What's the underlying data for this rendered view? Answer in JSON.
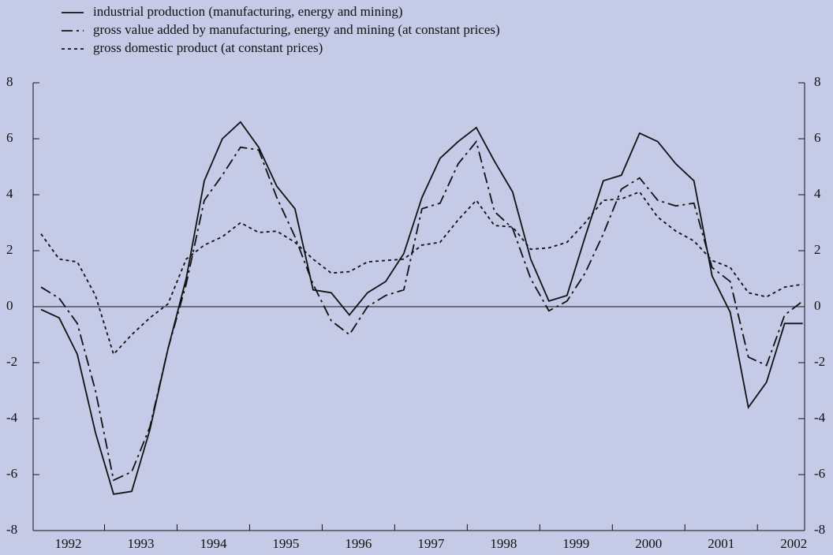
{
  "chart_data": {
    "type": "line",
    "x": [
      1992.125,
      1992.375,
      1992.625,
      1992.875,
      1993.125,
      1993.375,
      1993.625,
      1993.875,
      1994.125,
      1994.375,
      1994.625,
      1994.875,
      1995.125,
      1995.375,
      1995.625,
      1995.875,
      1996.125,
      1996.375,
      1996.625,
      1996.875,
      1997.125,
      1997.375,
      1997.625,
      1997.875,
      1998.125,
      1998.375,
      1998.625,
      1998.875,
      1999.125,
      1999.375,
      1999.625,
      1999.875,
      2000.125,
      2000.375,
      2000.625,
      2000.875,
      2001.125,
      2001.375,
      2001.625,
      2001.875,
      2002.125,
      2002.375,
      2002.625
    ],
    "xlim": [
      1992.016,
      2002.65
    ],
    "xticks": [
      1993,
      1994,
      1995,
      1996,
      1997,
      1998,
      1999,
      2000,
      2001,
      2002
    ],
    "year_labels": [
      1992,
      1993,
      1994,
      1995,
      1996,
      1997,
      1998,
      1999,
      2000,
      2001,
      2002
    ],
    "ylim": [
      -8,
      8
    ],
    "yticks": [
      -8,
      -6,
      -4,
      -2,
      0,
      2,
      4,
      6,
      8
    ],
    "legend": "top-left",
    "series": [
      {
        "name": "industrial production (manufacturing, energy and mining)",
        "color": "#111111",
        "style": "solid",
        "values": [
          -0.1,
          -0.4,
          -1.7,
          -4.5,
          -6.7,
          -6.6,
          -4.4,
          -1.5,
          1.0,
          4.5,
          6.0,
          6.6,
          5.7,
          4.3,
          3.5,
          0.6,
          0.5,
          -0.3,
          0.5,
          0.9,
          1.9,
          3.9,
          5.3,
          5.9,
          6.4,
          5.2,
          4.1,
          1.7,
          0.2,
          0.4,
          2.5,
          4.5,
          4.7,
          6.2,
          5.9,
          5.1,
          4.5,
          1.1,
          -0.2,
          -3.6,
          -2.7,
          -0.6,
          -0.6
        ]
      },
      {
        "name": "gross value added by manufacturing, energy and mining (at constant prices)",
        "color": "#111111",
        "style": "dashdot",
        "values": [
          0.7,
          0.3,
          -0.6,
          -3.0,
          -6.2,
          -5.9,
          -4.3,
          -1.5,
          0.8,
          3.8,
          4.7,
          5.7,
          5.6,
          3.9,
          2.5,
          0.8,
          -0.5,
          -1.0,
          0.0,
          0.4,
          0.6,
          3.5,
          3.7,
          5.1,
          5.9,
          3.4,
          2.8,
          1.0,
          -0.15,
          0.2,
          1.2,
          2.6,
          4.2,
          4.6,
          3.8,
          3.6,
          3.7,
          1.4,
          0.9,
          -1.8,
          -2.1,
          -0.3,
          0.2
        ]
      },
      {
        "name": "gross domestic product (at constant prices)",
        "color": "#111111",
        "style": "dotted",
        "values": [
          2.6,
          1.7,
          1.6,
          0.4,
          -1.7,
          -1.0,
          -0.4,
          0.1,
          1.7,
          2.2,
          2.5,
          3.0,
          2.65,
          2.7,
          2.3,
          1.7,
          1.2,
          1.25,
          1.6,
          1.65,
          1.7,
          2.2,
          2.3,
          3.1,
          3.8,
          2.9,
          2.85,
          2.05,
          2.1,
          2.3,
          3.0,
          3.8,
          3.85,
          4.1,
          3.2,
          2.7,
          2.35,
          1.65,
          1.4,
          0.5,
          0.35,
          0.7,
          0.8
        ]
      }
    ]
  }
}
